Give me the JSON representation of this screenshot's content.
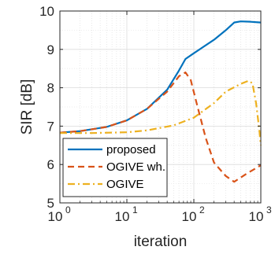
{
  "chart_data": {
    "type": "line",
    "title": "",
    "xlabel": "iteration",
    "ylabel": "SIR [dB]",
    "x_scale": "log",
    "xlim": [
      1,
      1000
    ],
    "ylim": [
      5,
      10
    ],
    "x_ticks": [
      {
        "base": "10",
        "exp": "0",
        "value": 1
      },
      {
        "base": "10",
        "exp": "1",
        "value": 10
      },
      {
        "base": "10",
        "exp": "2",
        "value": 100
      },
      {
        "base": "10",
        "exp": "3",
        "value": 1000
      }
    ],
    "y_ticks": [
      "5",
      "6",
      "7",
      "8",
      "9",
      "10"
    ],
    "grid": "major and minor",
    "legend_position": "bottom-left",
    "series": [
      {
        "name": "proposed",
        "color": "#0072BD",
        "style": "solid",
        "points": [
          [
            1,
            6.83
          ],
          [
            2,
            6.87
          ],
          [
            5,
            6.98
          ],
          [
            10,
            7.15
          ],
          [
            20,
            7.45
          ],
          [
            40,
            7.95
          ],
          [
            60,
            8.45
          ],
          [
            75,
            8.75
          ],
          [
            100,
            8.9
          ],
          [
            200,
            9.25
          ],
          [
            300,
            9.5
          ],
          [
            400,
            9.7
          ],
          [
            500,
            9.73
          ],
          [
            700,
            9.72
          ],
          [
            1000,
            9.7
          ]
        ]
      },
      {
        "name": "OGIVE wh.",
        "color": "#D95319",
        "style": "dashed",
        "points": [
          [
            1,
            6.83
          ],
          [
            2,
            6.87
          ],
          [
            5,
            6.98
          ],
          [
            10,
            7.15
          ],
          [
            20,
            7.45
          ],
          [
            40,
            7.9
          ],
          [
            60,
            8.3
          ],
          [
            75,
            8.4
          ],
          [
            90,
            8.2
          ],
          [
            110,
            7.6
          ],
          [
            150,
            6.7
          ],
          [
            200,
            6.05
          ],
          [
            300,
            5.7
          ],
          [
            400,
            5.55
          ],
          [
            600,
            5.75
          ],
          [
            1000,
            5.98
          ]
        ]
      },
      {
        "name": "OGIVE",
        "color": "#EDB120",
        "style": "dashdot",
        "points": [
          [
            1,
            6.82
          ],
          [
            3,
            6.82
          ],
          [
            10,
            6.84
          ],
          [
            20,
            6.89
          ],
          [
            50,
            7.02
          ],
          [
            100,
            7.22
          ],
          [
            200,
            7.6
          ],
          [
            300,
            7.9
          ],
          [
            500,
            8.1
          ],
          [
            650,
            8.18
          ],
          [
            750,
            8.12
          ],
          [
            850,
            7.6
          ],
          [
            950,
            6.9
          ],
          [
            1000,
            6.5
          ]
        ]
      }
    ]
  }
}
